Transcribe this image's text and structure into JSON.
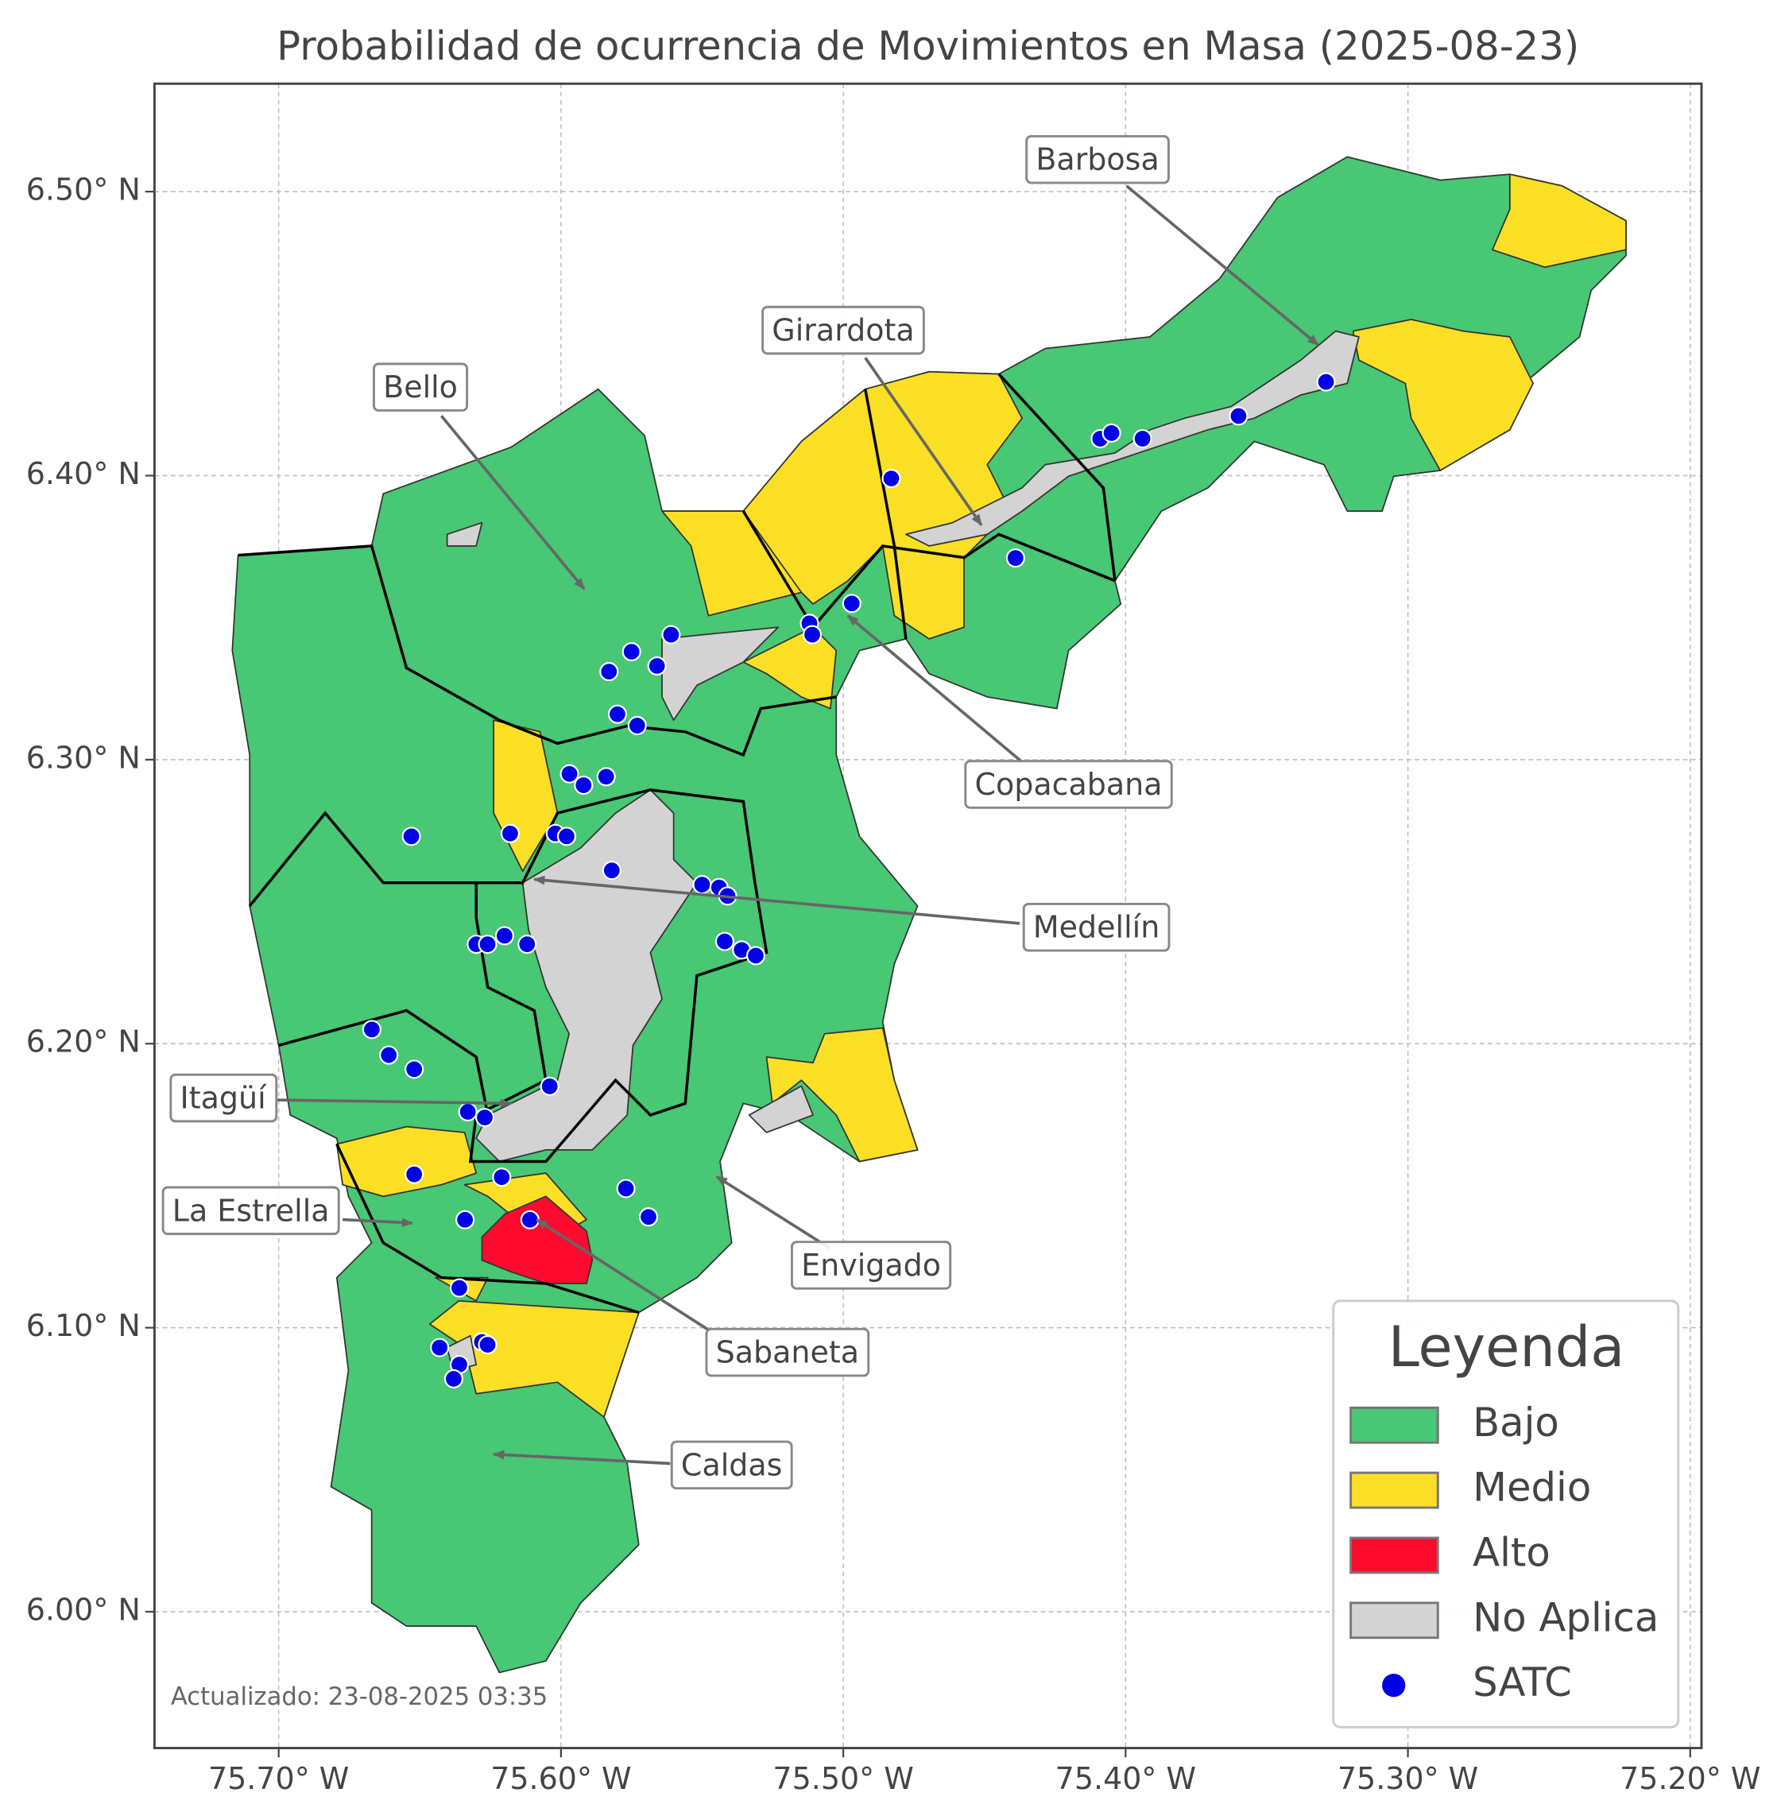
{
  "chart_data": {
    "type": "map",
    "title": "Probabilidad de ocurrencia de Movimientos en Masa (2025-08-23)",
    "xlim": [
      -75.744,
      -75.196
    ],
    "ylim": [
      5.952,
      6.538
    ],
    "xticks": [
      {
        "value": -75.7,
        "label": "75.70° W"
      },
      {
        "value": -75.6,
        "label": "75.60° W"
      },
      {
        "value": -75.5,
        "label": "75.50° W"
      },
      {
        "value": -75.4,
        "label": "75.40° W"
      },
      {
        "value": -75.3,
        "label": "75.30° W"
      },
      {
        "value": -75.2,
        "label": "75.20° W"
      }
    ],
    "yticks": [
      {
        "value": 6.0,
        "label": "6.00° N"
      },
      {
        "value": 6.1,
        "label": "6.10° N"
      },
      {
        "value": 6.2,
        "label": "6.20° N"
      },
      {
        "value": 6.3,
        "label": "6.30° N"
      },
      {
        "value": 6.4,
        "label": "6.40° N"
      },
      {
        "value": 6.5,
        "label": "6.50° N"
      }
    ],
    "grid": true,
    "annotations": [
      "Barbosa",
      "Girardota",
      "Bello",
      "Copacabana",
      "Medellín",
      "Itagüí",
      "La Estrella",
      "Envigado",
      "Sabaneta",
      "Caldas"
    ],
    "legend": {
      "title": "Leyenda",
      "corner": "lower right",
      "entries": [
        {
          "name": "Bajo",
          "color": "#48c774"
        },
        {
          "name": "Medio",
          "color": "#fbdf24"
        },
        {
          "name": "Alto",
          "color": "#ff0a2f"
        },
        {
          "name": "No Aplica",
          "color": "#d3d3d3"
        },
        {
          "name": "SATC",
          "color": "#0000e6"
        }
      ]
    },
    "satc_points": {
      "lon": [
        -75.483,
        -75.409,
        -75.405,
        -75.394,
        -75.36,
        -75.329,
        -75.439,
        -75.497,
        -75.512,
        -75.511,
        -75.561,
        -75.575,
        -75.583,
        -75.566,
        -75.58,
        -75.573,
        -75.597,
        -75.592,
        -75.584,
        -75.653,
        -75.618,
        -75.602,
        -75.598,
        -75.582,
        -75.55,
        -75.544,
        -75.541,
        -75.542,
        -75.536,
        -75.531,
        -75.63,
        -75.626,
        -75.62,
        -75.612,
        -75.667,
        -75.661,
        -75.652,
        -75.604,
        -75.633,
        -75.627,
        -75.652,
        -75.621,
        -75.577,
        -75.569,
        -75.634,
        -75.611,
        -75.636,
        -75.643,
        -75.628,
        -75.626,
        -75.636,
        -75.638
      ],
      "lat": [
        6.399,
        6.413,
        6.415,
        6.413,
        6.421,
        6.433,
        6.371,
        6.355,
        6.348,
        6.344,
        6.344,
        6.338,
        6.331,
        6.333,
        6.316,
        6.312,
        6.295,
        6.291,
        6.294,
        6.273,
        6.274,
        6.274,
        6.273,
        6.261,
        6.256,
        6.255,
        6.252,
        6.236,
        6.233,
        6.231,
        6.235,
        6.235,
        6.238,
        6.235,
        6.205,
        6.196,
        6.191,
        6.185,
        6.176,
        6.174,
        6.154,
        6.153,
        6.149,
        6.139,
        6.138,
        6.138,
        6.114,
        6.093,
        6.095,
        6.094,
        6.087,
        6.082
      ]
    },
    "note": "Actualizado: 23-08-2025 03:35"
  }
}
